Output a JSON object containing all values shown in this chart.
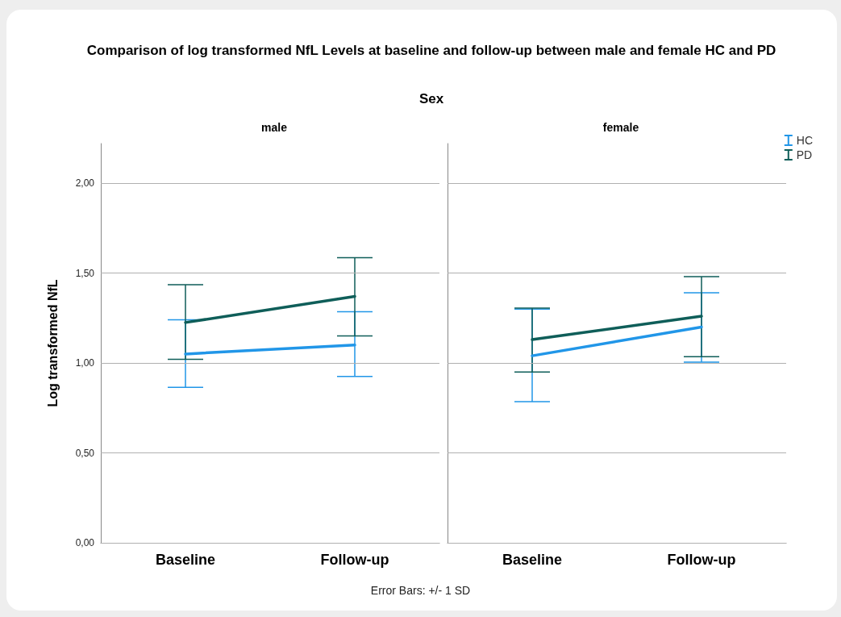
{
  "chart_data": [
    {
      "type": "line",
      "title": "Comparison of log transformed NfL Levels at baseline and follow-up between male and female HC and PD",
      "subtitle": "Sex",
      "annotations": [
        "male"
      ],
      "ylabel": "Log transformed NfL",
      "categories": [
        "Baseline",
        "Follow-up"
      ],
      "ylim": [
        0,
        2.22
      ],
      "yticks": [
        {
          "value": 0,
          "label": "0,00"
        },
        {
          "value": 0.5,
          "label": "0,50"
        },
        {
          "value": 1,
          "label": "1,00"
        },
        {
          "value": 1.5,
          "label": "1,50"
        },
        {
          "value": 2,
          "label": "2,00"
        }
      ],
      "grid": "y",
      "legend": false,
      "marker": "none",
      "line_style": "solid",
      "series": [
        {
          "color": "#2196e8",
          "values": [
            1.05,
            1.1
          ],
          "errors": [
            [
              0.865,
              1.24
            ],
            [
              0.925,
              1.285
            ]
          ]
        },
        {
          "color": "#0f5e59",
          "values": [
            1.225,
            1.37
          ],
          "errors": [
            [
              1.02,
              1.435
            ],
            [
              1.15,
              1.585
            ]
          ]
        }
      ]
    },
    {
      "type": "line",
      "annotations": [
        "female",
        "Error Bars: +/- 1 SD"
      ],
      "categories": [
        "Baseline",
        "Follow-up"
      ],
      "ylim": [
        0,
        2.22
      ],
      "yticks": [
        0,
        0.5,
        1,
        1.5,
        2
      ],
      "tick_labels": "x",
      "grid": "y",
      "legend": "right",
      "marker": "none",
      "line_style": "solid",
      "series": [
        {
          "name": "HC",
          "color": "#2196e8",
          "values": [
            1.04,
            1.2
          ],
          "errors": [
            [
              0.785,
              1.3
            ],
            [
              1.005,
              1.39
            ]
          ]
        },
        {
          "name": "PD",
          "color": "#0f5e59",
          "values": [
            1.13,
            1.26
          ],
          "errors": [
            [
              0.95,
              1.305
            ],
            [
              1.035,
              1.48
            ]
          ]
        }
      ]
    }
  ]
}
